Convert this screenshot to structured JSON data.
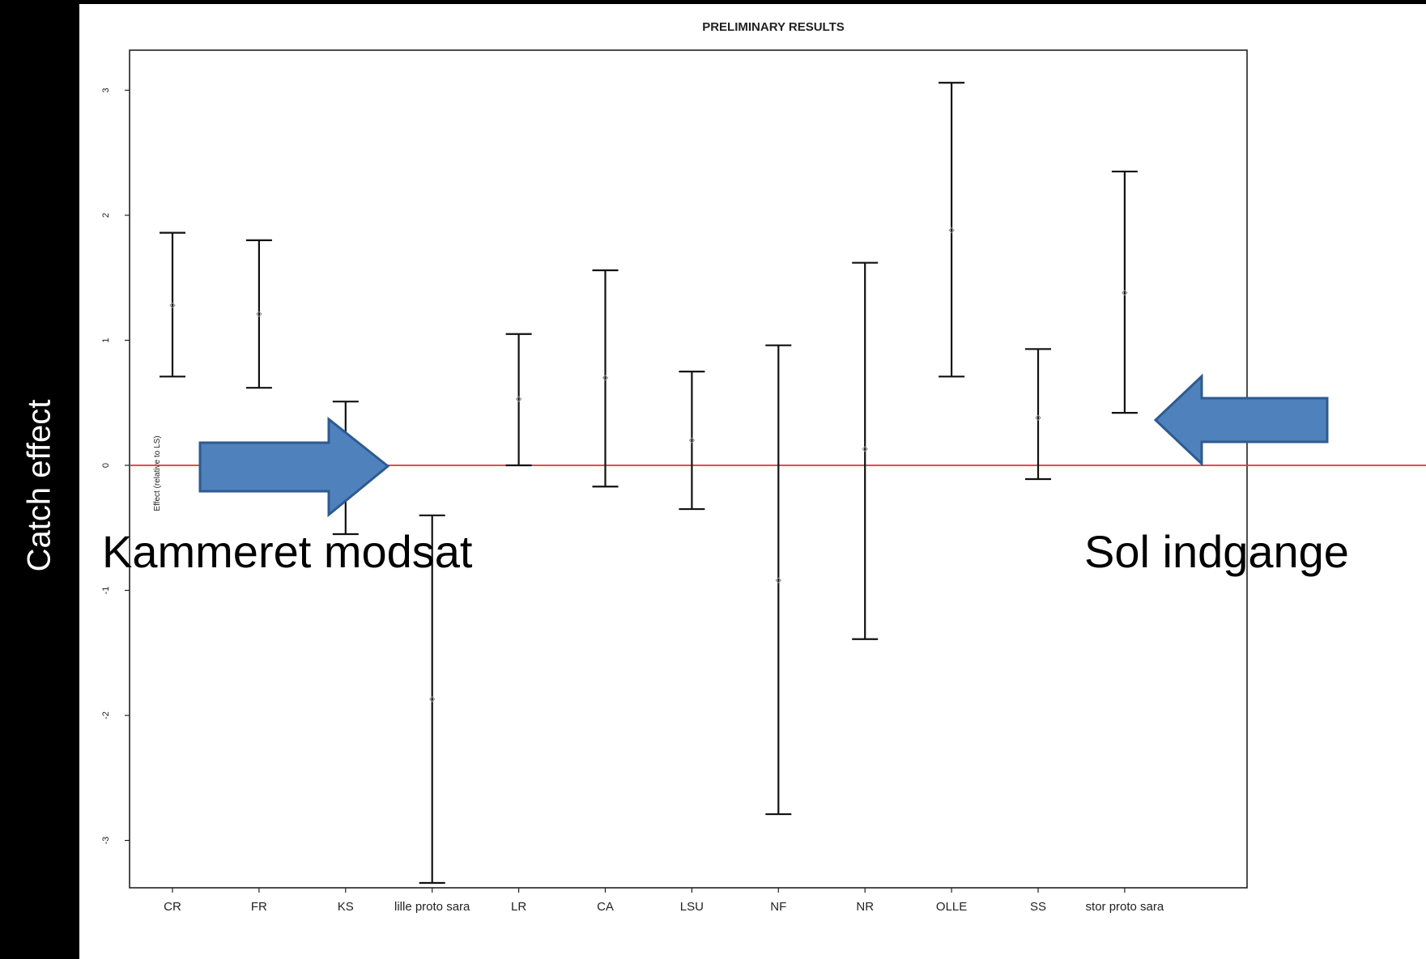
{
  "side_label": "Catch effect",
  "annotations": {
    "left_text": "Kammeret modsat",
    "right_text": "Sol indgange"
  },
  "colors": {
    "reference_line": "#e8312f",
    "arrow_fill": "#4f81bd",
    "arrow_stroke": "#2e5b8f",
    "error_bar": "#111111",
    "point": "#888888"
  },
  "chart_data": {
    "type": "scatter",
    "title": "PRELIMINARY RESULTS",
    "xlabel": "",
    "ylabel": "Effect (relative to LS)",
    "ylim": [
      -3.6,
      3.3
    ],
    "yticks": [
      -3,
      -2,
      -1,
      0,
      1,
      2,
      3
    ],
    "ytick_labels": [
      "-3",
      "-2",
      "-1",
      "0",
      "1",
      "2",
      "3"
    ],
    "reference_line": 0,
    "grid": false,
    "categories": [
      "CR",
      "FR",
      "KS",
      "lille proto sara",
      "LR",
      "CA",
      "LSU",
      "NF",
      "NR",
      "OLLE",
      "SS",
      "stor proto sara"
    ],
    "series": [
      {
        "estimate": [
          1.28,
          1.21,
          -0.01,
          -1.87,
          0.53,
          0.7,
          0.2,
          -0.92,
          0.13,
          1.88,
          0.38,
          1.38
        ],
        "lower": [
          0.71,
          0.62,
          -0.55,
          -3.34,
          0.0,
          -0.17,
          -0.35,
          -2.79,
          -1.39,
          0.71,
          -0.11,
          0.42
        ],
        "upper": [
          1.86,
          1.8,
          0.51,
          -0.4,
          1.05,
          1.56,
          0.75,
          0.96,
          1.62,
          3.06,
          0.93,
          2.35
        ]
      }
    ]
  }
}
